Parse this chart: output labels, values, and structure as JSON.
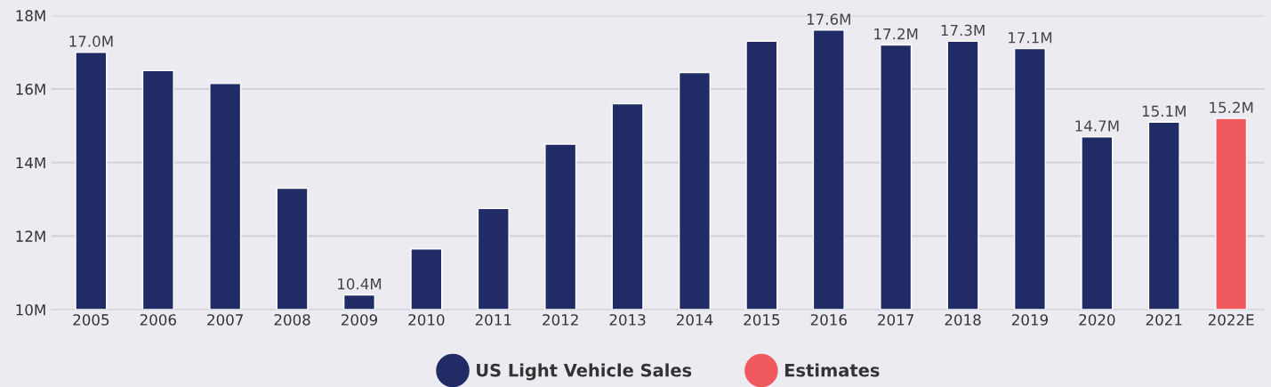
{
  "chart_data": {
    "type": "bar",
    "categories": [
      "2005",
      "2006",
      "2007",
      "2008",
      "2009",
      "2010",
      "2011",
      "2012",
      "2013",
      "2014",
      "2015",
      "2016",
      "2017",
      "2018",
      "2019",
      "2020",
      "2021",
      "2022E"
    ],
    "series": [
      {
        "name": "US Light Vehicle Sales",
        "color": "#212b66",
        "values": [
          17.0,
          16.5,
          16.15,
          13.3,
          10.4,
          11.65,
          12.75,
          14.5,
          15.6,
          16.45,
          17.3,
          17.6,
          17.2,
          17.3,
          17.1,
          14.7,
          15.1,
          null
        ],
        "value_labels": [
          "17.0M",
          null,
          null,
          null,
          "10.4M",
          null,
          null,
          null,
          null,
          null,
          null,
          "17.6M",
          "17.2M",
          "17.3M",
          "17.1M",
          "14.7M",
          "15.1M",
          null
        ]
      },
      {
        "name": "Estimates",
        "color": "#f05a5f",
        "values": [
          null,
          null,
          null,
          null,
          null,
          null,
          null,
          null,
          null,
          null,
          null,
          null,
          null,
          null,
          null,
          null,
          null,
          15.2
        ],
        "value_labels": [
          null,
          null,
          null,
          null,
          null,
          null,
          null,
          null,
          null,
          null,
          null,
          null,
          null,
          null,
          null,
          null,
          null,
          "15.2M"
        ]
      }
    ],
    "ylim": [
      10,
      18
    ],
    "yticks": [
      {
        "value": 10,
        "label": "10M"
      },
      {
        "value": 12,
        "label": "12M"
      },
      {
        "value": 14,
        "label": "14M"
      },
      {
        "value": 16,
        "label": "16M"
      },
      {
        "value": 18,
        "label": "18M"
      }
    ],
    "grid": "y",
    "legend": "bottom",
    "marker": "circle"
  }
}
